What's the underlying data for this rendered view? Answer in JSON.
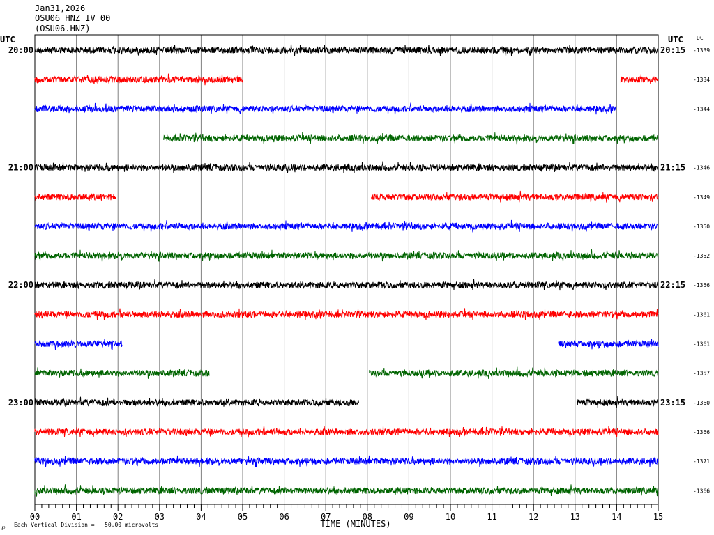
{
  "header": {
    "date": "Jan31,2026",
    "station_line": "OSU06 HNZ IV 00",
    "channel_line": "(OSU06.HNZ)"
  },
  "chart_data": {
    "type": "line",
    "title": "OSU06 HNZ IV 00",
    "xlabel": "TIME (MINUTES)",
    "xlim": [
      0,
      15
    ],
    "x_ticks": [
      "00",
      "01",
      "02",
      "03",
      "04",
      "05",
      "06",
      "07",
      "08",
      "09",
      "10",
      "11",
      "12",
      "13",
      "14",
      "15"
    ],
    "left_axis_label": "UTC",
    "right_axis_label": "UTC",
    "dc_label": "DC",
    "footer_text": "Each Vertical Division =   50.00 microvolts",
    "footer_mark": "℘",
    "trace_colors": [
      "#000000",
      "#ff0000",
      "#0000ff",
      "#006400"
    ],
    "hours": [
      {
        "left": "20:00",
        "right": "20:15"
      },
      {
        "left": "21:00",
        "right": "21:15"
      },
      {
        "left": "22:00",
        "right": "22:15"
      },
      {
        "left": "23:00",
        "right": "23:15"
      }
    ],
    "traces": [
      {
        "dc": "-1339",
        "color": "#000000",
        "segments": [
          [
            0,
            15
          ]
        ]
      },
      {
        "dc": "-1334",
        "color": "#ff0000",
        "segments": [
          [
            0,
            5.0
          ],
          [
            14.1,
            15
          ]
        ]
      },
      {
        "dc": "-1344",
        "color": "#0000ff",
        "segments": [
          [
            0,
            14.0
          ]
        ]
      },
      {
        "dc": "",
        "color": "#006400",
        "segments": [
          [
            3.1,
            15
          ]
        ]
      },
      {
        "dc": "-1346",
        "color": "#000000",
        "segments": [
          [
            0,
            15
          ]
        ]
      },
      {
        "dc": "-1349",
        "color": "#ff0000",
        "segments": [
          [
            0,
            1.95
          ],
          [
            8.1,
            15
          ]
        ]
      },
      {
        "dc": "-1350",
        "color": "#0000ff",
        "segments": [
          [
            0,
            15
          ]
        ]
      },
      {
        "dc": "-1352",
        "color": "#006400",
        "segments": [
          [
            0,
            15
          ]
        ]
      },
      {
        "dc": "-1356",
        "color": "#000000",
        "segments": [
          [
            0,
            15
          ]
        ]
      },
      {
        "dc": "-1361",
        "color": "#ff0000",
        "segments": [
          [
            0,
            15
          ]
        ]
      },
      {
        "dc": "-1361",
        "color": "#0000ff",
        "segments": [
          [
            0,
            2.1
          ],
          [
            12.6,
            15
          ]
        ]
      },
      {
        "dc": "-1357",
        "color": "#006400",
        "segments": [
          [
            0,
            4.2
          ],
          [
            8.05,
            15
          ]
        ]
      },
      {
        "dc": "-1360",
        "color": "#000000",
        "segments": [
          [
            0,
            7.8
          ],
          [
            13.05,
            15
          ]
        ]
      },
      {
        "dc": "-1366",
        "color": "#ff0000",
        "segments": [
          [
            0,
            15
          ]
        ]
      },
      {
        "dc": "-1371",
        "color": "#0000ff",
        "segments": [
          [
            0,
            15
          ]
        ]
      },
      {
        "dc": "-1366",
        "color": "#006400",
        "segments": [
          [
            0,
            15
          ]
        ]
      }
    ]
  }
}
